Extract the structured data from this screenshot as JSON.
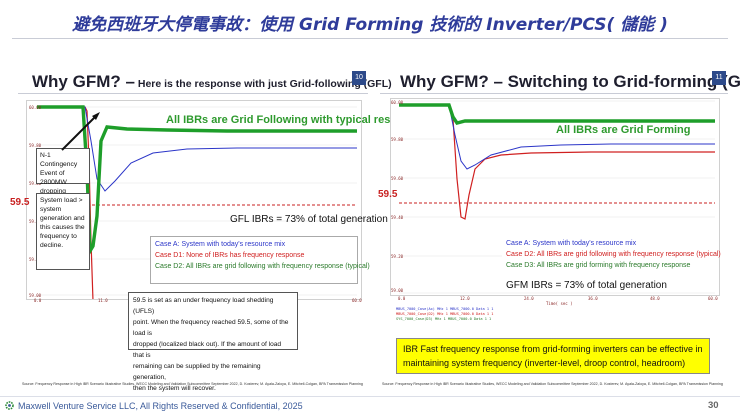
{
  "slide": {
    "title": "避免西班牙大停電事故：使用 Grid Forming 技術的 Inverter/PCS( 儲能 )",
    "footer": "Maxwell Venture Service LLC, All Rights Reserved & Confidential, 2025",
    "page_number": "30"
  },
  "left": {
    "title_main": "Why GFM? –",
    "title_sub": " Here is the response with just Grid-following (GFL)",
    "page_badge": "10",
    "green_label": "All IBRs are Grid Following with typical response",
    "contingency_box": [
      "N-1 Contingency",
      "Event of 2800MW",
      "dropping offline."
    ],
    "system_box": [
      "System load >",
      "system",
      "generation and",
      "this causes the",
      "frequency to",
      "decline."
    ],
    "freq_label": "59.5",
    "ibr_ratio": "GFL IBRs = 73% of total generation",
    "legend": [
      {
        "text": "Case A: System with today's resource mix",
        "color": "#2b35c8"
      },
      {
        "text": "Case D1: None of IBRs has frequency response",
        "color": "#d02020"
      },
      {
        "text": "Case D2: All IBRs are grid following with frequency response (typical)",
        "color": "#2a7a2a"
      }
    ],
    "ufls_box": [
      "59.5 is set as an under frequency load shedding (UFLS)",
      "point. When the frequency reached 59.5, some of the load is",
      "dropped (localized black out). If the amount of load that is",
      "remaining can be supplied by the remaining generation,",
      "then the system will recover."
    ],
    "y_ticks": [
      "60.00",
      "59.80",
      "59.60",
      "59.40",
      "59.20",
      "59.00"
    ],
    "x_ticks": [
      "0.0",
      "11.0",
      "60.0"
    ],
    "source": "Source: Frequency Response in High IBR Scenario Illustrative Studies, WECC Modeling and Validation Subcommittee September 2022, D. Kosterev, M. Ayala-Zaloya, E. Mitchell-Colgan, BPA Transmission Planning"
  },
  "right": {
    "title_main": "Why GFM? – Switching to Grid-forming (GFM)",
    "page_badge": "11",
    "green_label": "All IBRs are Grid Forming",
    "freq_label": "59.5",
    "ibr_ratio": "GFM IBRs = 73% of total generation",
    "legend": [
      {
        "text": "Case A: System with today's resource mix",
        "color": "#2b35c8"
      },
      {
        "text": "Case D2: All IBRs are grid following with frequency response (typical)",
        "color": "#d02020"
      },
      {
        "text": "Case D3: All IBRs are grid forming with frequency response",
        "color": "#2a7a2a"
      }
    ],
    "y_ticks": [
      "60.00",
      "59.80",
      "59.60",
      "59.40",
      "59.20",
      "59.00"
    ],
    "x_ticks": [
      "0.0",
      "12.0",
      "24.0",
      "36.0",
      "48.0",
      "60.0"
    ],
    "x_axis_label": "Time( sec )",
    "channel_rows": [
      "MBUS_7000_Case(Ax) MHz   1     MBUS_7000.0  Data  1  1",
      "MBUS_7000_Case(D2) MHz   1     MBUS_7000.0  Data  1  1",
      "SYS_7000_Case(D3) MHz   1     MBUS_7000.0  Data  1  1"
    ],
    "yellow_box": [
      "IBR Fast frequency response from grid-forming inverters can be effective in",
      "maintaining system frequency (inverter-level, droop control, headroom)"
    ],
    "source": "Source: Frequency Response in High IBR Scenario Illustrative Studies, WECC Modeling and Validation Subcommittee September 2022, D. Kosterev, M. Ayala-Zaloya, E. Mitchell-Colgan, BPA Transmission Planning"
  },
  "colors": {
    "blue": "#2b35c8",
    "red": "#d02020",
    "green": "#1e9e2a",
    "title_blue": "#2f3c9a"
  },
  "icons": {
    "logo": "gear-logo-icon"
  }
}
